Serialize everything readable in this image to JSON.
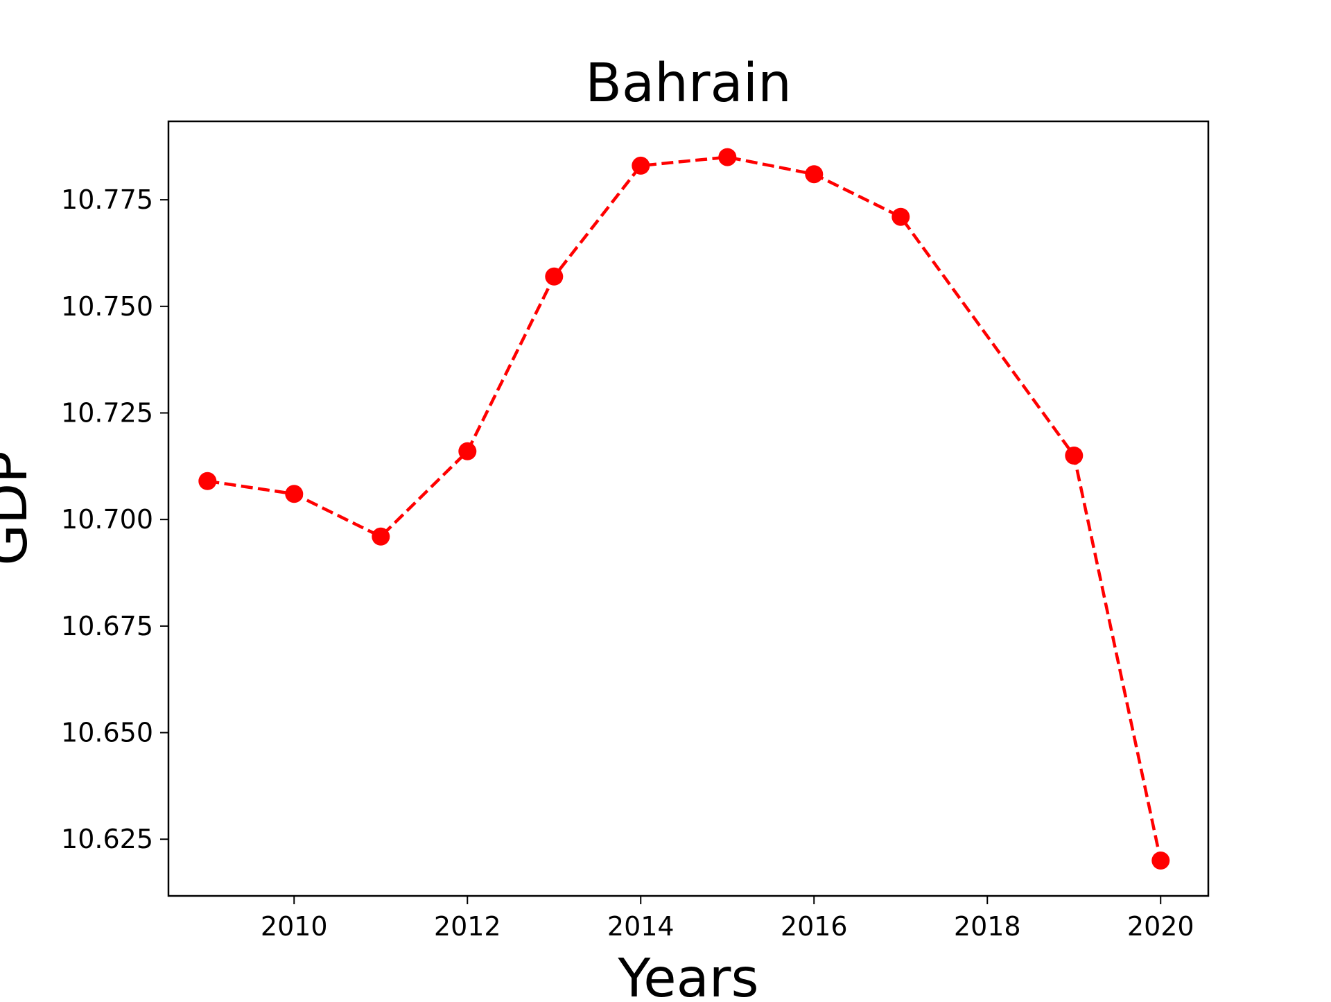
{
  "chart_data": {
    "type": "line",
    "title": "Bahrain",
    "xlabel": "Years",
    "ylabel": "GDP",
    "x": [
      2009,
      2010,
      2011,
      2012,
      2013,
      2014,
      2015,
      2016,
      2017,
      2019,
      2020
    ],
    "series": [
      {
        "values": [
          10.709,
          10.706,
          10.696,
          10.716,
          10.757,
          10.783,
          10.785,
          10.781,
          10.771,
          10.715,
          10.62
        ],
        "color": "#ff0000",
        "line_style": "dashed",
        "marker": "circle"
      }
    ],
    "xlim": [
      2008.55,
      2020.55
    ],
    "ylim": [
      10.6117,
      10.7934
    ],
    "xticks": [
      2010,
      2012,
      2014,
      2016,
      2018,
      2020
    ],
    "xtick_labels": [
      "2010",
      "2012",
      "2014",
      "2016",
      "2018",
      "2020"
    ],
    "yticks": [
      10.625,
      10.65,
      10.675,
      10.7,
      10.725,
      10.75,
      10.775
    ],
    "ytick_labels": [
      "10.625",
      "10.650",
      "10.675",
      "10.700",
      "10.725",
      "10.750",
      "10.775"
    ],
    "grid": false,
    "legend": "none"
  }
}
